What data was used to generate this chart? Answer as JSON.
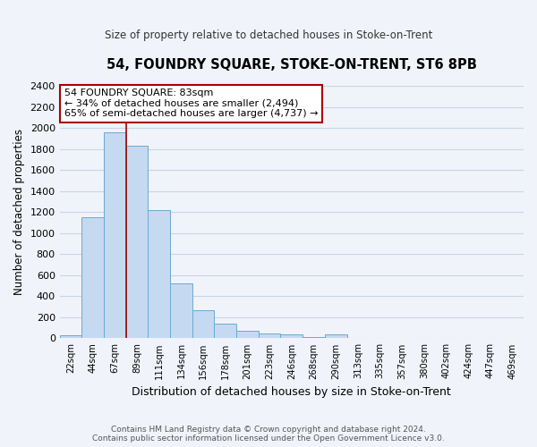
{
  "title": "54, FOUNDRY SQUARE, STOKE-ON-TRENT, ST6 8PB",
  "subtitle": "Size of property relative to detached houses in Stoke-on-Trent",
  "xlabel": "Distribution of detached houses by size in Stoke-on-Trent",
  "ylabel": "Number of detached properties",
  "bar_labels": [
    "22sqm",
    "44sqm",
    "67sqm",
    "89sqm",
    "111sqm",
    "134sqm",
    "156sqm",
    "178sqm",
    "201sqm",
    "223sqm",
    "246sqm",
    "268sqm",
    "290sqm",
    "313sqm",
    "335sqm",
    "357sqm",
    "380sqm",
    "402sqm",
    "424sqm",
    "447sqm",
    "469sqm"
  ],
  "bar_values": [
    30,
    1150,
    1960,
    1830,
    1220,
    520,
    265,
    140,
    75,
    50,
    40,
    10,
    35,
    5,
    2,
    2,
    2,
    1,
    1,
    1,
    1
  ],
  "bar_color": "#c5d9f0",
  "bar_edge_color": "#6aaad4",
  "marker_label": "54 FOUNDRY SQUARE: 83sqm",
  "annotation_line1": "← 34% of detached houses are smaller (2,494)",
  "annotation_line2": "65% of semi-detached houses are larger (4,737) →",
  "red_line_x": 2.5,
  "red_line_color": "#aa0000",
  "ylim": [
    0,
    2400
  ],
  "yticks": [
    0,
    200,
    400,
    600,
    800,
    1000,
    1200,
    1400,
    1600,
    1800,
    2000,
    2200,
    2400
  ],
  "footer_line1": "Contains HM Land Registry data © Crown copyright and database right 2024.",
  "footer_line2": "Contains public sector information licensed under the Open Government Licence v3.0.",
  "bg_color": "#f0f4fa",
  "grid_color": "#c8d4e8"
}
